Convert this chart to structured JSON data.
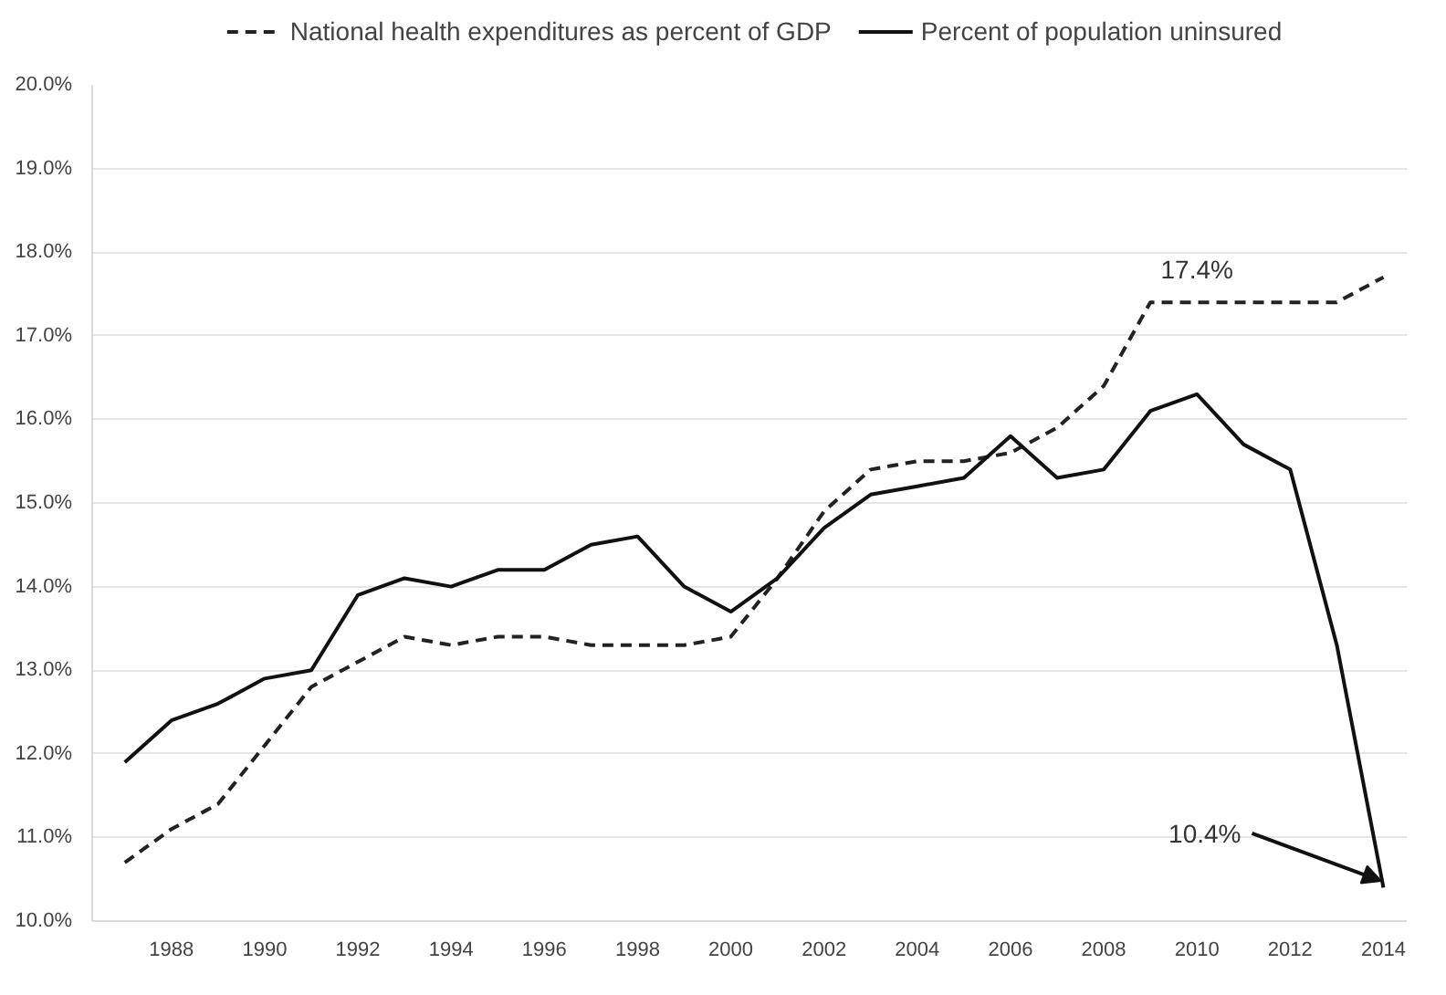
{
  "chart_data": {
    "type": "line",
    "x": [
      1987,
      1988,
      1989,
      1990,
      1991,
      1992,
      1993,
      1994,
      1995,
      1996,
      1997,
      1998,
      1999,
      2000,
      2001,
      2002,
      2003,
      2004,
      2005,
      2006,
      2007,
      2008,
      2009,
      2010,
      2011,
      2012,
      2013,
      2014
    ],
    "series": [
      {
        "name": "National health expenditures as percent of GDP",
        "color": "#222222",
        "line_style": "dashed",
        "values": [
          10.7,
          11.1,
          11.4,
          12.1,
          12.8,
          13.1,
          13.4,
          13.3,
          13.4,
          13.4,
          13.3,
          13.3,
          13.3,
          13.4,
          14.1,
          14.9,
          15.4,
          15.5,
          15.5,
          15.6,
          15.9,
          16.4,
          17.4,
          17.4,
          17.4,
          17.4,
          17.4,
          17.7
        ]
      },
      {
        "name": "Percent of population uninsured",
        "color": "#111111",
        "line_style": "solid",
        "values": [
          11.9,
          12.4,
          12.6,
          12.9,
          13.0,
          13.9,
          14.1,
          14.0,
          14.2,
          14.2,
          14.5,
          14.6,
          14.0,
          13.7,
          14.1,
          14.7,
          15.1,
          15.2,
          15.3,
          15.8,
          15.3,
          15.4,
          16.1,
          16.3,
          15.7,
          15.4,
          13.3,
          10.4
        ]
      }
    ],
    "xlim": [
      1986.3,
      2014.5
    ],
    "xticks": [
      1988,
      1990,
      1992,
      1994,
      1996,
      1998,
      2000,
      2002,
      2004,
      2006,
      2008,
      2010,
      2012,
      2014
    ],
    "ylim": [
      10,
      20
    ],
    "yticks": [
      {
        "value": 10,
        "label": "10.0%"
      },
      {
        "value": 11,
        "label": "11.0%"
      },
      {
        "value": 12,
        "label": "12.0%"
      },
      {
        "value": 13,
        "label": "13.0%"
      },
      {
        "value": 14,
        "label": "14.0%"
      },
      {
        "value": 15,
        "label": "15.0%"
      },
      {
        "value": 16,
        "label": "16.0%"
      },
      {
        "value": 17,
        "label": "17.0%"
      },
      {
        "value": 18,
        "label": "18.0%"
      },
      {
        "value": 19,
        "label": "19.0%"
      },
      {
        "value": 20,
        "label": "20.0%"
      }
    ],
    "grid": "y",
    "legend": "top",
    "marker": "none",
    "annotations": [
      {
        "text": "17.4%",
        "x": 2010,
        "y": 17.4
      },
      {
        "text": "10.4%",
        "x": 2014,
        "y": 10.4
      }
    ]
  }
}
